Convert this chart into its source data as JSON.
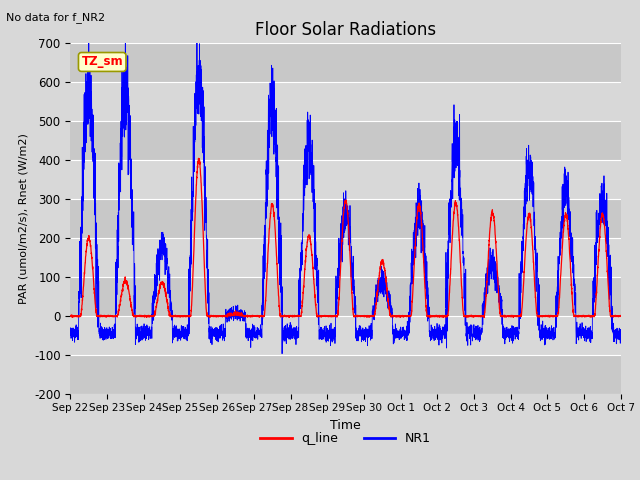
{
  "title": "Floor Solar Radiations",
  "subtitle": "No data for f_NR2",
  "xlabel": "Time",
  "ylabel": "PAR (umol/m2/s), Rnet (W/m2)",
  "ylim": [
    -200,
    700
  ],
  "yticks": [
    -200,
    -100,
    0,
    100,
    200,
    300,
    400,
    500,
    600,
    700
  ],
  "fig_bg_color": "#d8d8d8",
  "plot_bg_color": "#e0e0e0",
  "legend_labels": [
    "q_line",
    "NR1"
  ],
  "legend_colors": [
    "red",
    "blue"
  ],
  "tz_label": "TZ_sm",
  "x_tick_labels": [
    "Sep 22",
    "Sep 23",
    "Sep 24",
    "Sep 25",
    "Sep 26",
    "Sep 27",
    "Sep 28",
    "Sep 29",
    "Sep 30",
    "Oct 1",
    "Oct 2",
    "Oct 3",
    "Oct 4",
    "Oct 5",
    "Oct 6",
    "Oct 7"
  ],
  "n_days": 15,
  "red_peaks": [
    200,
    90,
    85,
    400,
    5,
    285,
    205,
    295,
    140,
    285,
    290,
    265,
    260,
    260,
    260
  ],
  "blue_peaks": [
    570,
    600,
    185,
    610,
    5,
    560,
    435,
    265,
    90,
    265,
    435,
    130,
    380,
    315,
    295
  ],
  "pts_per_day": 288
}
